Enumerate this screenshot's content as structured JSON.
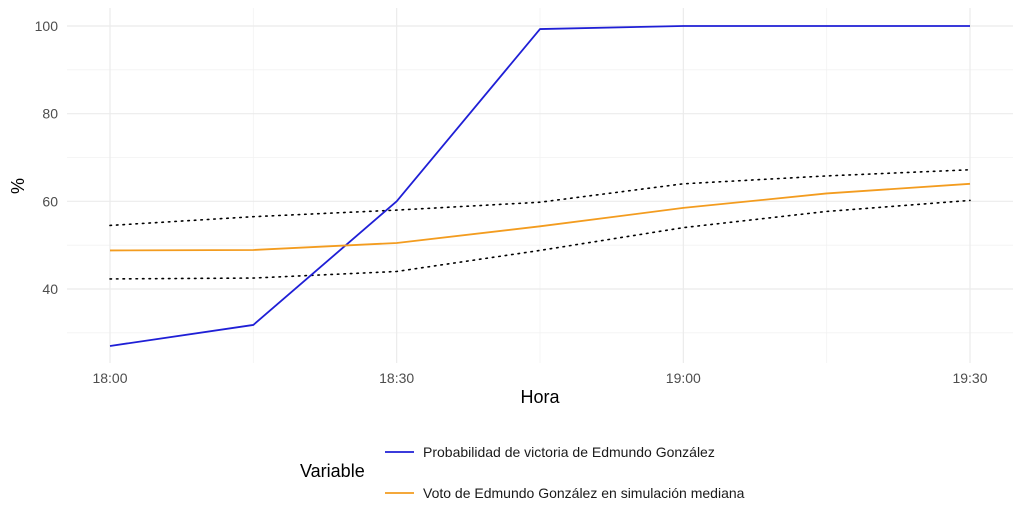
{
  "chart_data": {
    "type": "line",
    "xlabel": "Hora",
    "ylabel": "%",
    "x_ticks": [
      "18:00",
      "18:30",
      "19:00",
      "19:30"
    ],
    "y_ticks": [
      40,
      60,
      80,
      100
    ],
    "x_range_minutes": [
      0,
      90
    ],
    "ylim": [
      23,
      103
    ],
    "grid": true,
    "legend_position": "bottom",
    "legend_title": "Variable",
    "series": [
      {
        "name": "Probabilidad de victoria de Edmundo González",
        "color": "#1f1fd6",
        "x": [
          "18:00",
          "18:15",
          "18:30",
          "18:45",
          "19:00",
          "19:15",
          "19:30"
        ],
        "values": [
          27.0,
          31.8,
          60.0,
          99.3,
          100.0,
          100.0,
          100.0
        ]
      },
      {
        "name": "Voto de Edmundo González en simulación mediana",
        "color": "#f39c1f",
        "x": [
          "18:00",
          "18:15",
          "18:30",
          "18:45",
          "19:00",
          "19:15",
          "19:30"
        ],
        "values": [
          48.8,
          48.9,
          50.5,
          54.3,
          58.5,
          61.8,
          64.0
        ]
      }
    ],
    "bands": [
      {
        "style": "dotted",
        "color": "#000000",
        "x": [
          "18:00",
          "18:15",
          "18:30",
          "18:45",
          "19:00",
          "19:15",
          "19:30"
        ],
        "upper": [
          54.5,
          56.5,
          58.0,
          59.8,
          64.0,
          65.8,
          67.2
        ],
        "lower": [
          42.3,
          42.5,
          44.0,
          48.8,
          54.0,
          57.7,
          60.2
        ]
      }
    ]
  }
}
